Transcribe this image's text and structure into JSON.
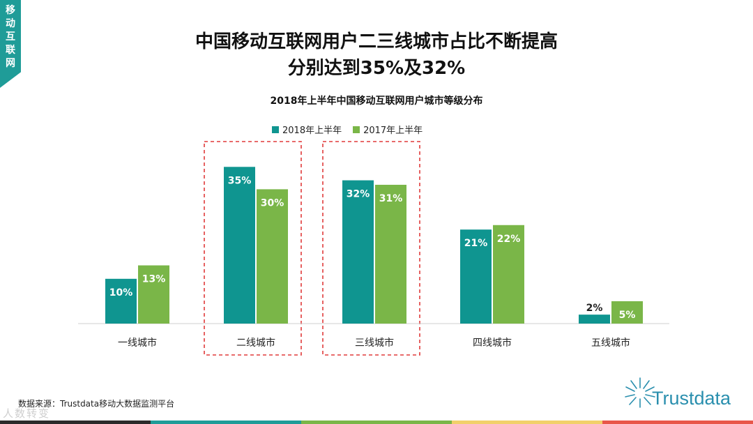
{
  "section_tab": [
    "移",
    "动",
    "互",
    "联",
    "网"
  ],
  "title_line1": "中国移动互联网用户二三线城市占比不断提高",
  "title_line2": "分别达到35%及32%",
  "source": "数据来源：Trustdata移动大数据监测平台",
  "watermark": "人数转变",
  "logo": {
    "text": "Trustdata",
    "icon": "sunburst-icon"
  },
  "colors": {
    "series_2018": "#0f9590",
    "series_2017": "#7ab648",
    "highlight_box": "#e03a3a",
    "tab": "#1f9c98",
    "footer_strip": [
      "#2a2a2a",
      "#1f9c98",
      "#7ab648",
      "#f2d06b",
      "#e8574a"
    ]
  },
  "chart_data": {
    "type": "bar",
    "title": "2018年上半年中国移动互联网用户城市等级分布",
    "categories": [
      "一线城市",
      "二线城市",
      "三线城市",
      "四线城市",
      "五线城市"
    ],
    "series": [
      {
        "name": "2018年上半年",
        "values": [
          10,
          35,
          32,
          21,
          2
        ],
        "labels": [
          "10%",
          "35%",
          "32%",
          "21%",
          "2%"
        ]
      },
      {
        "name": "2017年上半年",
        "values": [
          13,
          30,
          31,
          22,
          5
        ],
        "labels": [
          "13%",
          "30%",
          "31%",
          "22%",
          "5%"
        ]
      }
    ],
    "unit": "%",
    "ylim": [
      0,
      40
    ],
    "grid": false,
    "legend": "top-center",
    "highlighted_categories": [
      "二线城市",
      "三线城市"
    ]
  }
}
